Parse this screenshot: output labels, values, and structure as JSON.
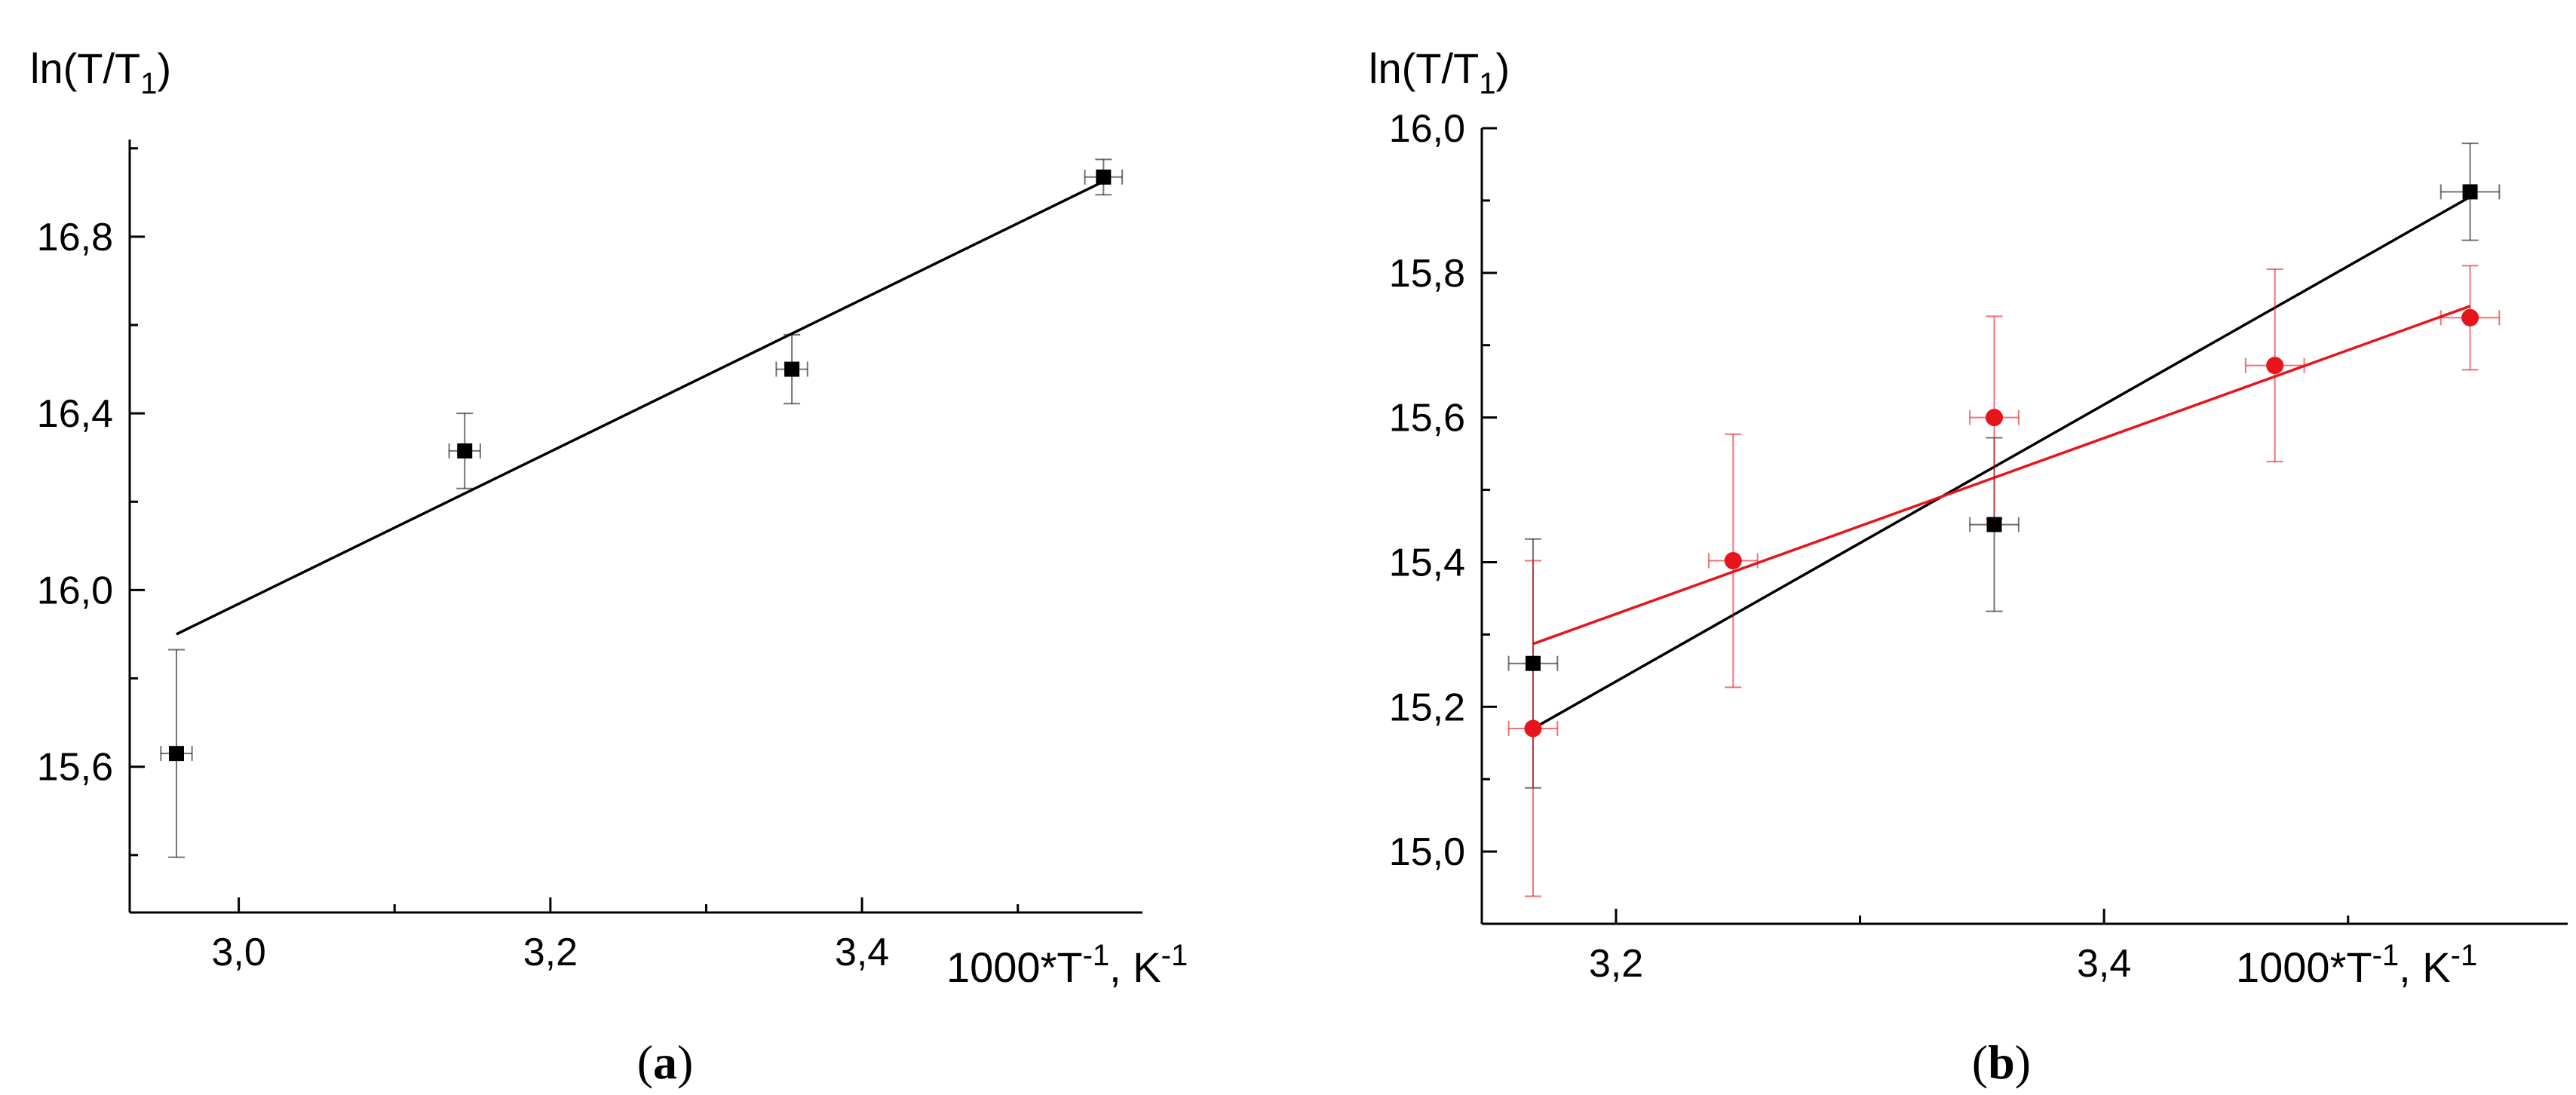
{
  "chart_data": [
    {
      "type": "scatter",
      "panel_label": "a",
      "ylabel": "ln(T/T1)",
      "ylabel_base": "ln(T/T",
      "ylabel_sub": "1",
      "ylabel_close": ")",
      "xlabel_base": "1000*T",
      "xlabel_exp": "-1",
      "xlabel_unit": ", K",
      "xlabel_unit_exp": "-1",
      "xlim": [
        2.93,
        3.58
      ],
      "ylim": [
        15.27,
        17.02
      ],
      "xticks": [
        3.0,
        3.2,
        3.4
      ],
      "xtick_labels": [
        "3,0",
        "3,2",
        "3,4"
      ],
      "yticks": [
        15.6,
        16.0,
        16.4,
        16.8
      ],
      "ytick_labels": [
        "15,6",
        "16,0",
        "16,4",
        "16,8"
      ],
      "grid": false,
      "series": [
        {
          "color": "#000000",
          "marker": "square",
          "x": [
            2.96,
            3.145,
            3.355,
            3.555
          ],
          "y": [
            15.63,
            16.315,
            16.5,
            16.935
          ],
          "x_err": [
            0.01,
            0.01,
            0.01,
            0.012
          ],
          "y_err": [
            0.235,
            0.085,
            0.078,
            0.04
          ],
          "fit": {
            "x": [
              2.96,
              3.555
            ],
            "y": [
              15.9,
              16.925
            ]
          }
        }
      ]
    },
    {
      "type": "scatter",
      "panel_label": "b",
      "ylabel": "ln(T/T1)",
      "ylabel_base": "ln(T/T",
      "ylabel_sub": "1",
      "ylabel_close": ")",
      "xlabel_base": "1000*T",
      "xlabel_exp": "-1",
      "xlabel_unit": ", K",
      "xlabel_unit_exp": "-1",
      "xlim": [
        3.145,
        3.59
      ],
      "ylim": [
        14.9,
        16.0
      ],
      "xticks": [
        3.2,
        3.4
      ],
      "xtick_labels": [
        "3,2",
        "3,4"
      ],
      "yticks": [
        15.0,
        15.2,
        15.4,
        15.6,
        15.8,
        16.0
      ],
      "ytick_labels": [
        "15,0",
        "15,2",
        "15,4",
        "15,6",
        "15,8",
        "16,0"
      ],
      "grid": false,
      "series": [
        {
          "color": "#000000",
          "marker": "square",
          "x": [
            3.166,
            3.355,
            3.55
          ],
          "y": [
            15.26,
            15.452,
            15.912
          ],
          "x_err": [
            0.01,
            0.01,
            0.012
          ],
          "y_err": [
            0.172,
            0.12,
            0.067
          ],
          "fit": {
            "x": [
              3.166,
              3.55
            ],
            "y": [
              15.17,
              15.905
            ]
          }
        },
        {
          "color": "#e8141b",
          "marker": "circle",
          "x": [
            3.166,
            3.248,
            3.355,
            3.47,
            3.55
          ],
          "y": [
            15.17,
            15.402,
            15.6,
            15.672,
            15.738
          ],
          "x_err": [
            0.01,
            0.01,
            0.01,
            0.012,
            0.012
          ],
          "y_err": [
            0.232,
            0.175,
            0.14,
            0.133,
            0.072
          ],
          "fit": {
            "x": [
              3.166,
              3.55
            ],
            "y": [
              15.287,
              15.754
            ]
          }
        }
      ]
    }
  ]
}
